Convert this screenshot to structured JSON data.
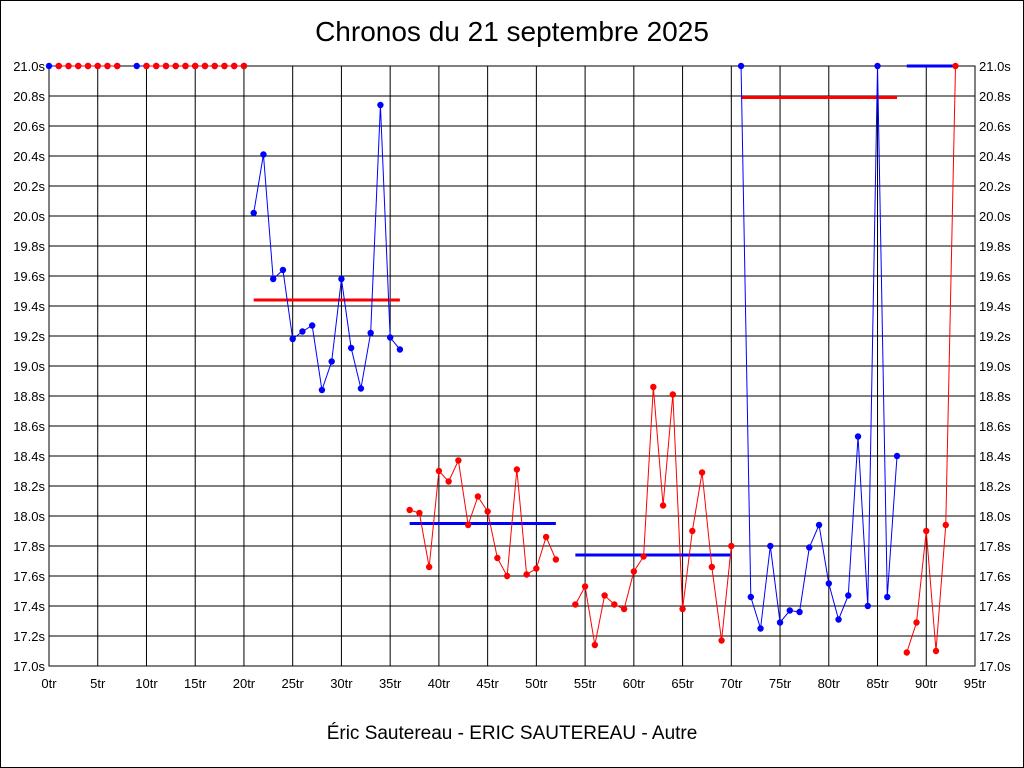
{
  "chart_data": {
    "type": "line",
    "title": "Chronos du 21 septembre 2025",
    "caption": "Éric Sautereau - ERIC SAUTEREAU - Autre",
    "xlabel": "",
    "ylabel": "",
    "xlim": [
      0,
      95
    ],
    "ylim": [
      17.0,
      21.0
    ],
    "grid": true,
    "x_ticks": [
      0,
      5,
      10,
      15,
      20,
      25,
      30,
      35,
      40,
      45,
      50,
      55,
      60,
      65,
      70,
      75,
      80,
      85,
      90,
      95
    ],
    "x_tick_labels": [
      "0tr",
      "5tr",
      "10tr",
      "15tr",
      "20tr",
      "25tr",
      "30tr",
      "35tr",
      "40tr",
      "45tr",
      "50tr",
      "55tr",
      "60tr",
      "65tr",
      "70tr",
      "75tr",
      "80tr",
      "85tr",
      "90tr",
      "95tr"
    ],
    "y_ticks": [
      17.0,
      17.2,
      17.4,
      17.6,
      17.8,
      18.0,
      18.2,
      18.4,
      18.6,
      18.8,
      19.0,
      19.2,
      19.4,
      19.6,
      19.8,
      20.0,
      20.2,
      20.4,
      20.6,
      20.8,
      21.0
    ],
    "y_tick_labels": [
      "17.0s",
      "17.2s",
      "17.4s",
      "17.6s",
      "17.8s",
      "18.0s",
      "18.2s",
      "18.4s",
      "18.6s",
      "18.8s",
      "19.0s",
      "19.2s",
      "19.4s",
      "19.6s",
      "19.8s",
      "20.0s",
      "20.2s",
      "20.4s",
      "20.6s",
      "20.8s",
      "21.0s"
    ],
    "colors": {
      "blue": "#0000ff",
      "red": "#ff0000"
    },
    "series": [
      {
        "color": "blue",
        "x": [
          0,
          1,
          2,
          3,
          4,
          5,
          6,
          7
        ],
        "y": [
          21.0,
          21.0,
          21.0,
          21.0,
          21.0,
          21.0,
          21.0,
          21.0
        ]
      },
      {
        "color": "red",
        "x": [
          1,
          2,
          3,
          4,
          5,
          6,
          7
        ],
        "y": [
          21.0,
          21.0,
          21.0,
          21.0,
          21.0,
          21.0,
          21.0
        ]
      },
      {
        "color": "blue",
        "x": [
          9,
          10,
          11,
          12,
          13,
          14,
          15,
          16,
          17,
          18,
          19,
          20
        ],
        "y": [
          21.0,
          21.0,
          21.0,
          21.0,
          21.0,
          21.0,
          21.0,
          21.0,
          21.0,
          21.0,
          21.0,
          21.0
        ]
      },
      {
        "color": "red",
        "x": [
          10,
          11,
          12,
          13,
          14,
          15,
          16,
          17,
          18,
          19,
          20
        ],
        "y": [
          21.0,
          21.0,
          21.0,
          21.0,
          21.0,
          21.0,
          21.0,
          21.0,
          21.0,
          21.0,
          21.0
        ]
      },
      {
        "color": "blue",
        "x": [
          21,
          22,
          23,
          24,
          25,
          26,
          27,
          28,
          29,
          30,
          31,
          32,
          33,
          34,
          35,
          36
        ],
        "y": [
          20.02,
          20.41,
          19.58,
          19.64,
          19.18,
          19.23,
          19.27,
          18.84,
          19.03,
          19.58,
          19.12,
          18.85,
          19.22,
          20.74,
          19.19,
          19.11
        ]
      },
      {
        "color": "red",
        "x": [
          37,
          38,
          39,
          40,
          41,
          42,
          43,
          44,
          45,
          46,
          47,
          48,
          49,
          50,
          51,
          52
        ],
        "y": [
          18.04,
          18.02,
          17.66,
          18.3,
          18.23,
          18.37,
          17.94,
          18.13,
          18.03,
          17.72,
          17.6,
          18.31,
          17.61,
          17.65,
          17.86,
          17.71
        ]
      },
      {
        "color": "red",
        "x": [
          54,
          55,
          56,
          57,
          58,
          59,
          60,
          61,
          62,
          63,
          64,
          65,
          66,
          67,
          68,
          69,
          70
        ],
        "y": [
          17.41,
          17.53,
          17.14,
          17.47,
          17.41,
          17.38,
          17.63,
          17.73,
          18.86,
          18.07,
          18.81,
          17.38,
          17.9,
          18.29,
          17.66,
          17.17,
          17.8
        ]
      },
      {
        "color": "blue",
        "x": [
          71,
          72,
          73,
          74,
          75,
          76,
          77,
          78,
          79,
          80,
          81,
          82,
          83,
          84,
          85,
          86,
          87
        ],
        "y": [
          21.0,
          17.46,
          17.25,
          17.8,
          17.29,
          17.37,
          17.36,
          17.79,
          17.94,
          17.55,
          17.31,
          17.47,
          18.53,
          17.4,
          21.0,
          17.46,
          18.4
        ]
      },
      {
        "color": "red",
        "x": [
          88,
          89,
          90,
          91,
          92,
          93
        ],
        "y": [
          17.09,
          17.29,
          17.9,
          17.1,
          17.94,
          21.0
        ]
      }
    ],
    "mean_lines": [
      {
        "color": "red",
        "x": [
          21,
          36
        ],
        "y": 19.44
      },
      {
        "color": "blue",
        "x": [
          37,
          52
        ],
        "y": 17.95
      },
      {
        "color": "blue",
        "x": [
          54,
          70
        ],
        "y": 17.74
      },
      {
        "color": "red",
        "x": [
          71,
          87
        ],
        "y": 20.79
      },
      {
        "color": "blue",
        "x": [
          88,
          93
        ],
        "y": 21.0
      }
    ]
  }
}
